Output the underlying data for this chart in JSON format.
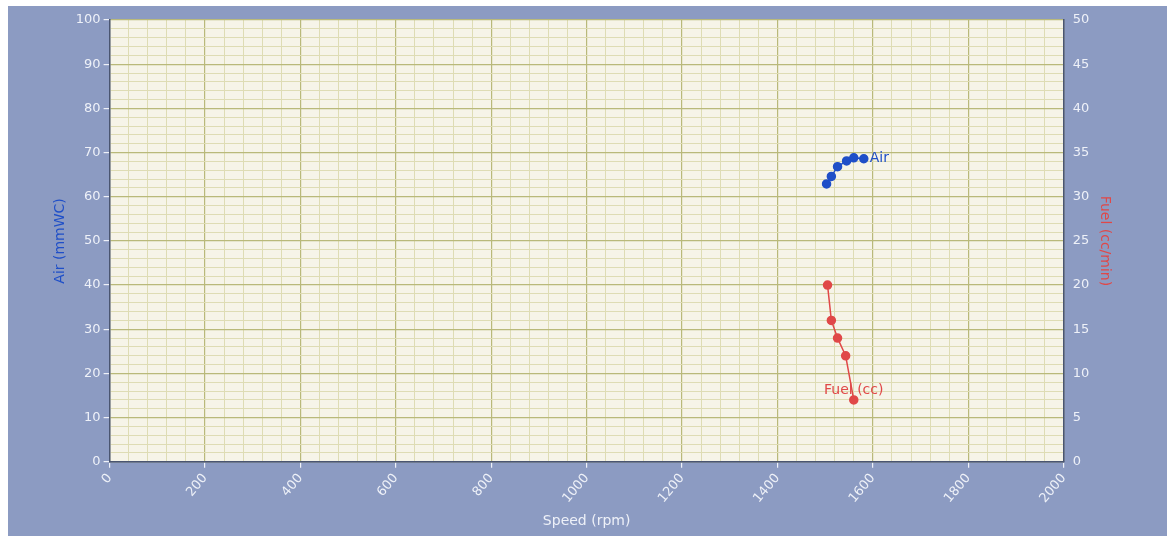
{
  "chart_data": {
    "type": "line",
    "xlabel": "Speed (rpm)",
    "ylabel": "Air (mmWC)",
    "y2label": "Fuel (cc/min)",
    "xlim": [
      0,
      2000
    ],
    "xticks": [
      0,
      {
        "value": 40,
        "label": null
      },
      {
        "value": 80,
        "label": null
      },
      {
        "value": 120,
        "label": null
      },
      {
        "value": 160,
        "label": null
      },
      200,
      {
        "value": 240,
        "label": null
      },
      {
        "value": 280,
        "label": null
      },
      {
        "value": 320,
        "label": null
      },
      {
        "value": 360,
        "label": null
      },
      400,
      {
        "value": 440,
        "label": null
      },
      {
        "value": 480,
        "label": null
      },
      {
        "value": 520,
        "label": null
      },
      {
        "value": 560,
        "label": null
      },
      600,
      {
        "value": 640,
        "label": null
      },
      {
        "value": 680,
        "label": null
      },
      {
        "value": 720,
        "label": null
      },
      {
        "value": 760,
        "label": null
      },
      800,
      {
        "value": 840,
        "label": null
      },
      {
        "value": 880,
        "label": null
      },
      {
        "value": 920,
        "label": null
      },
      {
        "value": 960,
        "label": null
      },
      1000,
      {
        "value": 1040,
        "label": null
      },
      {
        "value": 1080,
        "label": null
      },
      {
        "value": 1120,
        "label": null
      },
      {
        "value": 1160,
        "label": null
      },
      1200,
      {
        "value": 1240,
        "label": null
      },
      {
        "value": 1280,
        "label": null
      },
      {
        "value": 1320,
        "label": null
      },
      {
        "value": 1360,
        "label": null
      },
      1400,
      {
        "value": 1440,
        "label": null
      },
      {
        "value": 1480,
        "label": null
      },
      {
        "value": 1520,
        "label": null
      },
      {
        "value": 1560,
        "label": null
      },
      1600,
      {
        "value": 1640,
        "label": null
      },
      {
        "value": 1680,
        "label": null
      },
      {
        "value": 1720,
        "label": null
      },
      {
        "value": 1760,
        "label": null
      },
      1800,
      {
        "value": 1840,
        "label": null
      },
      {
        "value": 1880,
        "label": null
      },
      {
        "value": 1920,
        "label": null
      },
      {
        "value": 1960,
        "label": null
      },
      2000
    ],
    "ylim": [
      0,
      100
    ],
    "yticks": [
      0,
      {
        "value": 2,
        "label": null
      },
      {
        "value": 4,
        "label": null
      },
      {
        "value": 6,
        "label": null
      },
      {
        "value": 8,
        "label": null
      },
      10,
      {
        "value": 12,
        "label": null
      },
      {
        "value": 14,
        "label": null
      },
      {
        "value": 16,
        "label": null
      },
      {
        "value": 18,
        "label": null
      },
      20,
      {
        "value": 22,
        "label": null
      },
      {
        "value": 24,
        "label": null
      },
      {
        "value": 26,
        "label": null
      },
      {
        "value": 28,
        "label": null
      },
      30,
      {
        "value": 32,
        "label": null
      },
      {
        "value": 34,
        "label": null
      },
      {
        "value": 36,
        "label": null
      },
      {
        "value": 38,
        "label": null
      },
      40,
      {
        "value": 42,
        "label": null
      },
      {
        "value": 44,
        "label": null
      },
      {
        "value": 46,
        "label": null
      },
      {
        "value": 48,
        "label": null
      },
      50,
      {
        "value": 52,
        "label": null
      },
      {
        "value": 54,
        "label": null
      },
      {
        "value": 56,
        "label": null
      },
      {
        "value": 58,
        "label": null
      },
      60,
      {
        "value": 62,
        "label": null
      },
      {
        "value": 64,
        "label": null
      },
      {
        "value": 66,
        "label": null
      },
      {
        "value": 68,
        "label": null
      },
      70,
      {
        "value": 72,
        "label": null
      },
      {
        "value": 74,
        "label": null
      },
      {
        "value": 76,
        "label": null
      },
      {
        "value": 78,
        "label": null
      },
      80,
      {
        "value": 82,
        "label": null
      },
      {
        "value": 84,
        "label": null
      },
      {
        "value": 86,
        "label": null
      },
      {
        "value": 88,
        "label": null
      },
      90,
      {
        "value": 92,
        "label": null
      },
      {
        "value": 94,
        "label": null
      },
      {
        "value": 96,
        "label": null
      },
      {
        "value": 98,
        "label": null
      },
      100
    ],
    "y2lim": [
      0,
      50
    ],
    "y2ticks": [
      0,
      5,
      10,
      15,
      20,
      25,
      30,
      35,
      40,
      45,
      50
    ],
    "grid": true,
    "marker": "circle",
    "line_style": "solid",
    "legend": false,
    "series": [
      {
        "name": "Air",
        "color": "#1f4fc8",
        "x": [
          1503,
          1513,
          1526,
          1545,
          1560,
          1581
        ],
        "values": [
          62.9,
          64.6,
          66.8,
          68.1,
          68.8,
          68.6
        ]
      },
      {
        "name": "Fuel (cc)",
        "color": "#e04848",
        "axis": "y2",
        "x": [
          1505,
          1513,
          1526,
          1543,
          1560
        ],
        "values": [
          20,
          16,
          14,
          12,
          7
        ]
      }
    ]
  }
}
